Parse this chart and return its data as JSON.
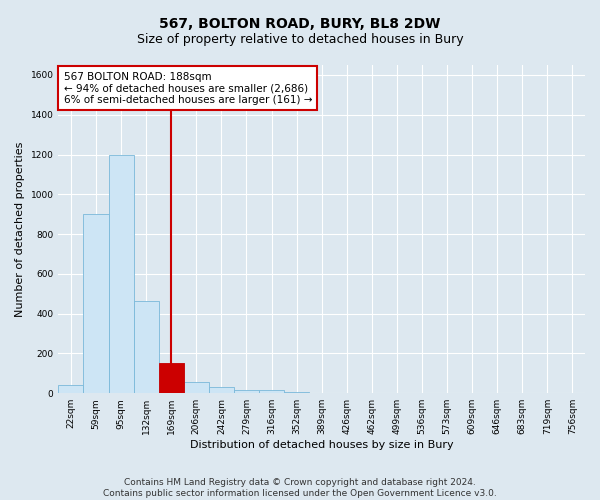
{
  "title": "567, BOLTON ROAD, BURY, BL8 2DW",
  "subtitle": "Size of property relative to detached houses in Bury",
  "xlabel": "Distribution of detached houses by size in Bury",
  "ylabel": "Number of detached properties",
  "footnote1": "Contains HM Land Registry data © Crown copyright and database right 2024.",
  "footnote2": "Contains public sector information licensed under the Open Government Licence v3.0.",
  "bar_labels": [
    "22sqm",
    "59sqm",
    "95sqm",
    "132sqm",
    "169sqm",
    "206sqm",
    "242sqm",
    "279sqm",
    "316sqm",
    "352sqm",
    "389sqm",
    "426sqm",
    "462sqm",
    "499sqm",
    "536sqm",
    "573sqm",
    "609sqm",
    "646sqm",
    "683sqm",
    "719sqm",
    "756sqm"
  ],
  "bar_values": [
    40,
    900,
    1200,
    465,
    150,
    55,
    30,
    15,
    15,
    5,
    0,
    0,
    0,
    0,
    0,
    0,
    0,
    0,
    0,
    0,
    0
  ],
  "bar_color": "#cde5f5",
  "bar_edge_color": "#7ab8d9",
  "highlight_bar_index": 4,
  "highlight_value": 150,
  "highlight_color": "#cc0000",
  "highlight_edge_color": "#cc0000",
  "vline_color": "#cc0000",
  "property_name": "567 BOLTON ROAD: 188sqm",
  "annotation_line1": "← 94% of detached houses are smaller (2,686)",
  "annotation_line2": "6% of semi-detached houses are larger (161) →",
  "annotation_box_color": "#cc0000",
  "annotation_box_fill": "#ffffff",
  "ylim": [
    0,
    1650
  ],
  "yticks": [
    0,
    200,
    400,
    600,
    800,
    1000,
    1200,
    1400,
    1600
  ],
  "bg_color": "#dde8f0",
  "plot_bg_color": "#dde8f0",
  "grid_color": "#ffffff",
  "title_fontsize": 10,
  "subtitle_fontsize": 9,
  "axis_label_fontsize": 8,
  "tick_fontsize": 6.5,
  "annotation_fontsize": 7.5,
  "footnote_fontsize": 6.5
}
